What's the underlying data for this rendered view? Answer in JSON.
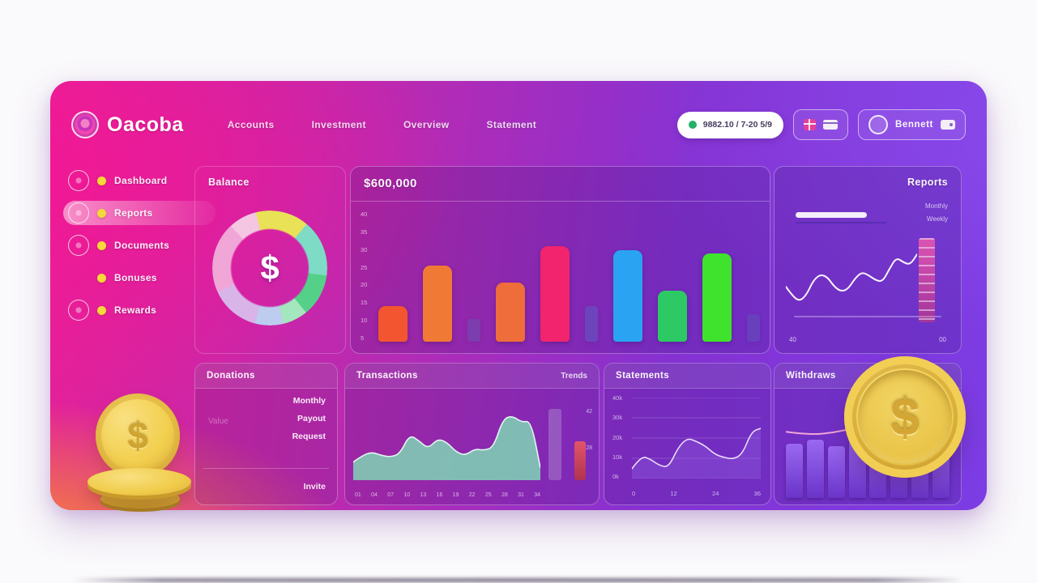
{
  "topbar": {
    "logo": "Oacoba",
    "nav": [
      {
        "label": "Accounts"
      },
      {
        "label": "Investment"
      },
      {
        "label": "Overview"
      },
      {
        "label": "Statement"
      }
    ],
    "balance_pill": {
      "text": "9882.10 / 7-20 5/9",
      "dot_color": "#23b06b"
    },
    "user_button": {
      "label": "Bennett"
    }
  },
  "sidebar": {
    "items": [
      {
        "label": "Dashboard",
        "active": false,
        "has_icon": true
      },
      {
        "label": "Reports",
        "active": true,
        "has_icon": true
      },
      {
        "label": "Documents",
        "active": false,
        "has_icon": true
      },
      {
        "label": "Bonuses",
        "active": false,
        "has_icon": false
      },
      {
        "label": "Rewards",
        "active": false,
        "has_icon": true
      }
    ]
  },
  "cards": {
    "balance": {
      "title": "Balance"
    },
    "earnings": {
      "title": "$600,000",
      "y_ticks": [
        "40",
        "35",
        "30",
        "25",
        "20",
        "15",
        "10",
        "5"
      ]
    },
    "reports": {
      "title": "Reports",
      "legend": [
        "Monthly",
        "Weekly"
      ],
      "x_left": "40",
      "x_right": "00"
    },
    "donations": {
      "title": "Donations",
      "muted_label": "Value",
      "rows": [
        "Monthly",
        "Payout",
        "Request"
      ],
      "footer_row": "Invite"
    },
    "transactions": {
      "title": "Transactions",
      "trend_label": "Trends",
      "x_ticks": [
        "01",
        "04",
        "07",
        "10",
        "13",
        "16",
        "19",
        "22",
        "25",
        "28",
        "31",
        "34"
      ],
      "side_labels": [
        "42",
        "28"
      ]
    },
    "statements": {
      "title": "Statements",
      "y_ticks": [
        "40k",
        "30k",
        "20k",
        "10k",
        "0k"
      ],
      "x_ticks": [
        "0",
        "12",
        "24",
        "36"
      ]
    },
    "withdraws": {
      "title": "Withdraws",
      "header_icon": "✦"
    }
  },
  "chart_data": [
    {
      "id": "balance-donut",
      "type": "pie",
      "title": "Balance",
      "center_label": "$",
      "segments": [
        {
          "label": "yellow",
          "value": 15,
          "color": "#e9e257"
        },
        {
          "label": "teal",
          "value": 16,
          "color": "#7edcc6"
        },
        {
          "label": "green",
          "value": 12,
          "color": "#55d089"
        },
        {
          "label": "mint",
          "value": 7,
          "color": "#a4e6bd"
        },
        {
          "label": "steel",
          "value": 8,
          "color": "#bccdf0"
        },
        {
          "label": "lavender",
          "value": 14,
          "color": "#d9b4e9"
        },
        {
          "label": "pink",
          "value": 20,
          "color": "#f0a6d6"
        },
        {
          "label": "rose",
          "value": 8,
          "color": "#f4c6e2"
        }
      ]
    },
    {
      "id": "earnings-bars",
      "type": "bar",
      "title": "$600,000",
      "ylim": [
        0,
        100
      ],
      "values": [
        27,
        58,
        17,
        45,
        73,
        27,
        70,
        39,
        67,
        21
      ],
      "colors": [
        "#f2552f",
        "#f07a35",
        "#5a64b4",
        "#ef6d3a",
        "#f2246d",
        "#4f78c8",
        "#29a3f2",
        "#2dc964",
        "#3fe22c",
        "#5a64b4"
      ],
      "ghost": [
        false,
        false,
        true,
        false,
        false,
        true,
        false,
        false,
        false,
        true
      ]
    },
    {
      "id": "reports-sparkline",
      "type": "line",
      "color": "#f7f3fb",
      "values": [
        30,
        18,
        12,
        20,
        38,
        45,
        42,
        30,
        24,
        27,
        40,
        48,
        44,
        38,
        36,
        52,
        66,
        60,
        57,
        70
      ]
    },
    {
      "id": "transactions-area",
      "type": "area",
      "color": "#7fd6b5",
      "values": [
        22,
        30,
        34,
        30,
        28,
        32,
        55,
        48,
        38,
        50,
        46,
        34,
        30,
        38,
        36,
        40,
        74,
        78,
        70,
        72,
        15
      ]
    },
    {
      "id": "statements-line",
      "type": "area",
      "color": "#eadcf9",
      "grid_lines": 5,
      "values": [
        12,
        28,
        24,
        16,
        14,
        38,
        50,
        46,
        40,
        30,
        26,
        24,
        30,
        58,
        62
      ]
    },
    {
      "id": "withdraws-combo",
      "type": "bar+line",
      "bar_color": "#8a55e8",
      "line_color": "#f2a6d8",
      "bars": [
        58,
        62,
        55,
        65,
        60,
        66,
        52,
        57
      ],
      "line": [
        48,
        42,
        46,
        56,
        50,
        47,
        52,
        60
      ]
    }
  ]
}
